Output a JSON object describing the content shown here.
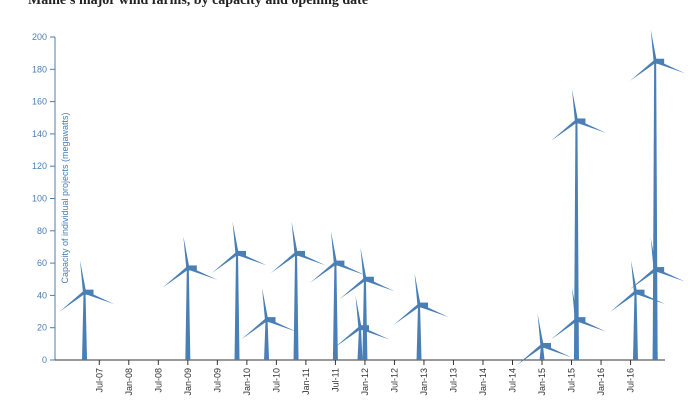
{
  "chart_data": {
    "type": "scatter",
    "title": "Maine's major wind farms, by capacity and opening date",
    "y_label": "Capacity of individual projects (megawatts)",
    "color": "#4a7fb5",
    "x": [
      "2007-04",
      "2009-01",
      "2009-11",
      "2010-05",
      "2010-11",
      "2011-07",
      "2011-12",
      "2012-01",
      "2012-12",
      "2015-01",
      "2015-08",
      "2015-08",
      "2016-08",
      "2016-12",
      "2016-12"
    ],
    "values": [
      42,
      57,
      66,
      25,
      66,
      60,
      20,
      50,
      34,
      9,
      148,
      25,
      42,
      185,
      56
    ],
    "xlim": [
      "2006-10",
      "2017-02"
    ],
    "xticks": [
      {
        "value": "2007-07",
        "label": "Jul-07"
      },
      {
        "value": "2008-01",
        "label": "Jan-08"
      },
      {
        "value": "2008-07",
        "label": "Jul-08"
      },
      {
        "value": "2009-01",
        "label": "Jan-09"
      },
      {
        "value": "2009-07",
        "label": "Jul-09"
      },
      {
        "value": "2010-01",
        "label": "Jan-10"
      },
      {
        "value": "2010-07",
        "label": "Jul-10"
      },
      {
        "value": "2011-01",
        "label": "Jan-11"
      },
      {
        "value": "2011-07",
        "label": "Jul-11"
      },
      {
        "value": "2012-01",
        "label": "Jan-12"
      },
      {
        "value": "2012-07",
        "label": "Jul-12"
      },
      {
        "value": "2013-01",
        "label": "Jan-13"
      },
      {
        "value": "2013-07",
        "label": "Jul-13"
      },
      {
        "value": "2014-01",
        "label": "Jan-14"
      },
      {
        "value": "2014-07",
        "label": "Jul-14"
      },
      {
        "value": "2015-01",
        "label": "Jan-15"
      },
      {
        "value": "2015-07",
        "label": "Jul-15"
      },
      {
        "value": "2016-01",
        "label": "Jan-16"
      },
      {
        "value": "2016-07",
        "label": "Jul-16"
      }
    ],
    "ylim": [
      0,
      200
    ],
    "yticks": [
      0,
      20,
      40,
      60,
      80,
      100,
      120,
      140,
      160,
      180,
      200
    ]
  }
}
